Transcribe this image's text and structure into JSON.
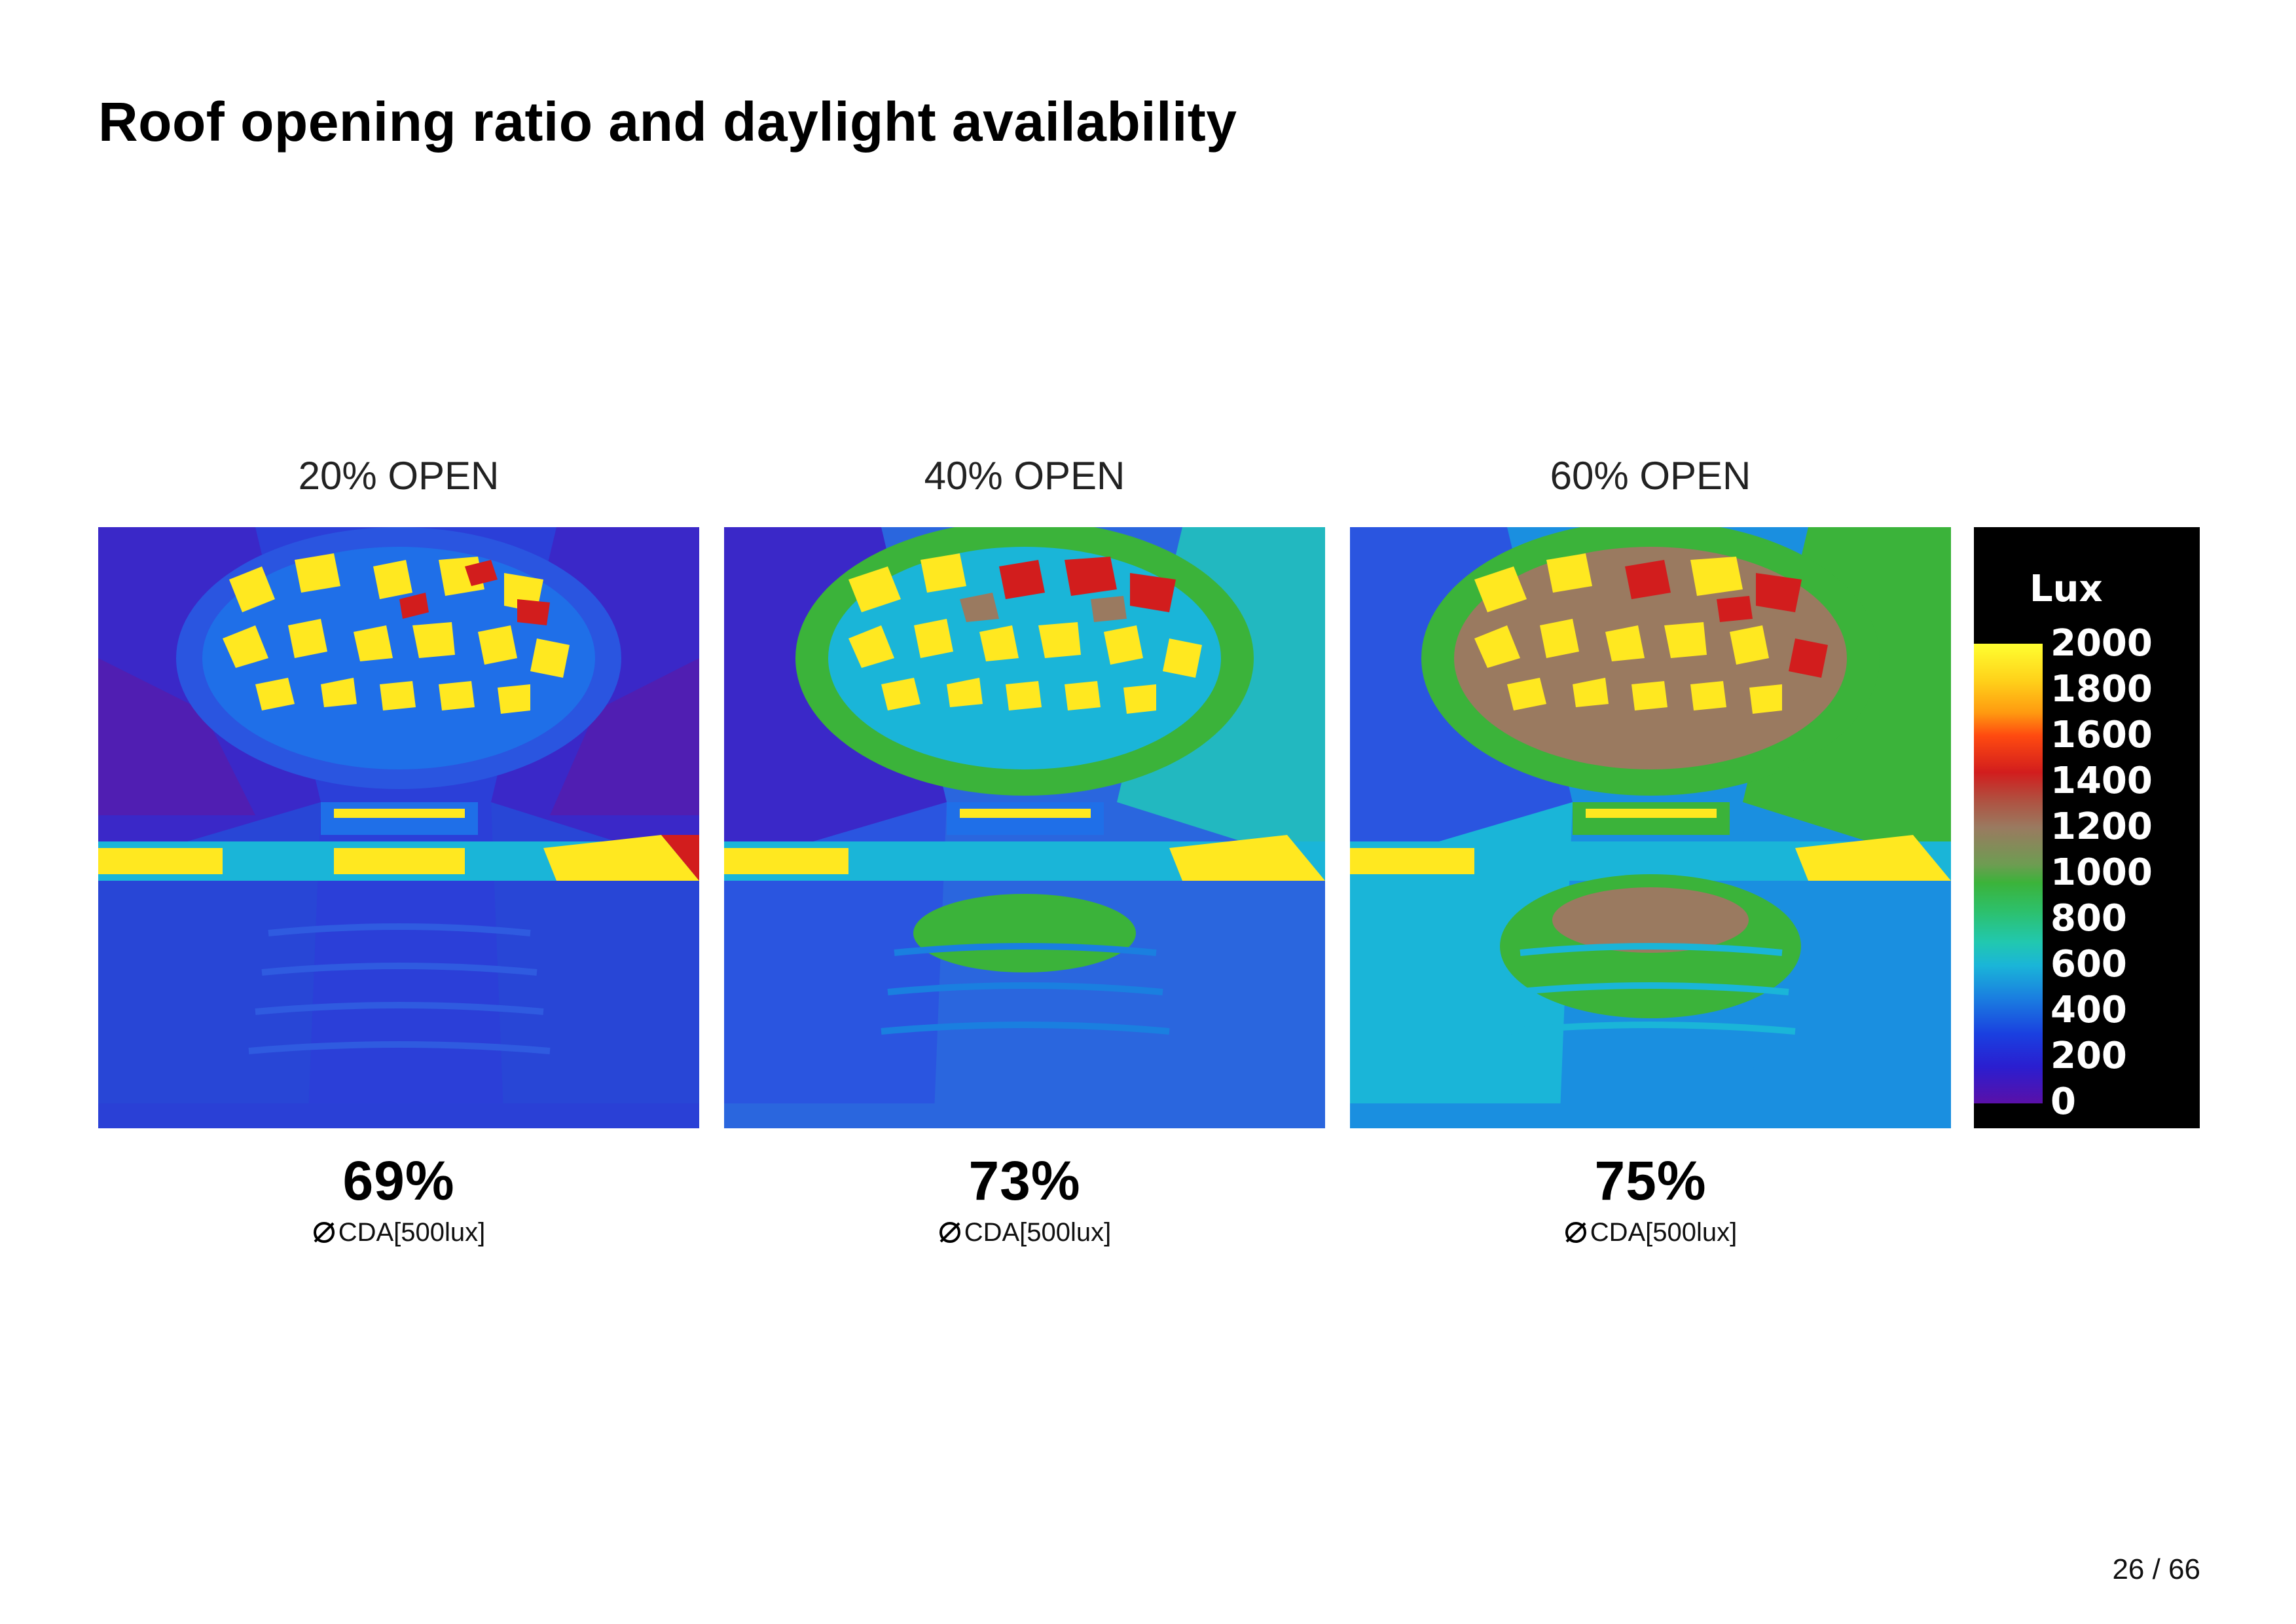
{
  "title": "Roof opening ratio and daylight availability",
  "panels": [
    {
      "label": "20% OPEN",
      "value": "69%",
      "metric": "CDA[500lux]"
    },
    {
      "label": "40% OPEN",
      "value": "73%",
      "metric": "CDA[500lux]"
    },
    {
      "label": "60% OPEN",
      "value": "75%",
      "metric": "CDA[500lux]"
    }
  ],
  "legend": {
    "unit": "Lux",
    "ticks": [
      "2000",
      "1800",
      "1600",
      "1400",
      "1200",
      "1000",
      "800",
      "600",
      "400",
      "200",
      "0"
    ],
    "colors": {
      "high": "#ffff30",
      "mid_high": "#d21d1d",
      "mid": "#3bb33a",
      "low": "#1a3fe0",
      "min": "#5a10a8"
    }
  },
  "page": {
    "number": "26 / 66"
  }
}
